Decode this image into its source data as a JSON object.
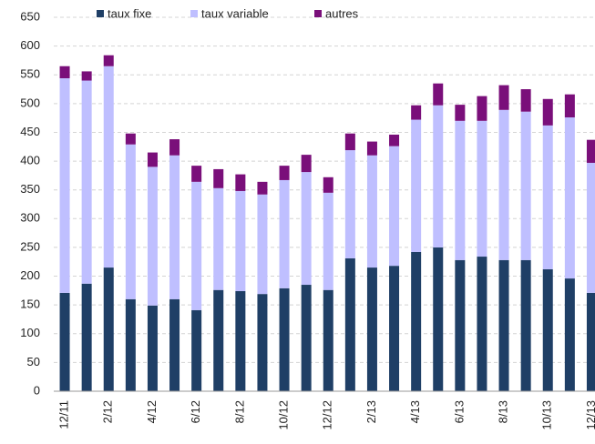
{
  "chart_data": {
    "type": "stacked-bar",
    "categories": [
      "12/11",
      null,
      "2/12",
      null,
      "4/12",
      null,
      "6/12",
      null,
      "8/12",
      null,
      "10/12",
      null,
      "12/12",
      null,
      "2/13",
      null,
      "4/13",
      null,
      "6/13",
      null,
      "8/13",
      null,
      "10/13",
      null,
      "12/13"
    ],
    "series": [
      {
        "name": "taux fixe",
        "color": "#1f3f66",
        "values": [
          171,
          187,
          215,
          160,
          149,
          160,
          141,
          176,
          174,
          169,
          179,
          185,
          176,
          231,
          215,
          218,
          242,
          250,
          228,
          234,
          228,
          228,
          212,
          196,
          171
        ]
      },
      {
        "name": "taux variable",
        "color": "#bfbfff",
        "values": [
          373,
          353,
          350,
          269,
          241,
          250,
          223,
          177,
          174,
          173,
          188,
          196,
          169,
          188,
          195,
          208,
          230,
          247,
          242,
          236,
          261,
          258,
          250,
          280,
          226
        ]
      },
      {
        "name": "autres",
        "color": "#7a0f7a",
        "values": [
          21,
          16,
          19,
          19,
          25,
          28,
          28,
          33,
          29,
          22,
          25,
          30,
          27,
          29,
          24,
          20,
          25,
          38,
          28,
          43,
          43,
          39,
          46,
          40,
          40
        ]
      }
    ],
    "ylim": [
      0,
      650
    ],
    "yticks": [
      0,
      50,
      100,
      150,
      200,
      250,
      300,
      350,
      400,
      450,
      500,
      550,
      600,
      650
    ],
    "grid": true,
    "legend": "top"
  }
}
